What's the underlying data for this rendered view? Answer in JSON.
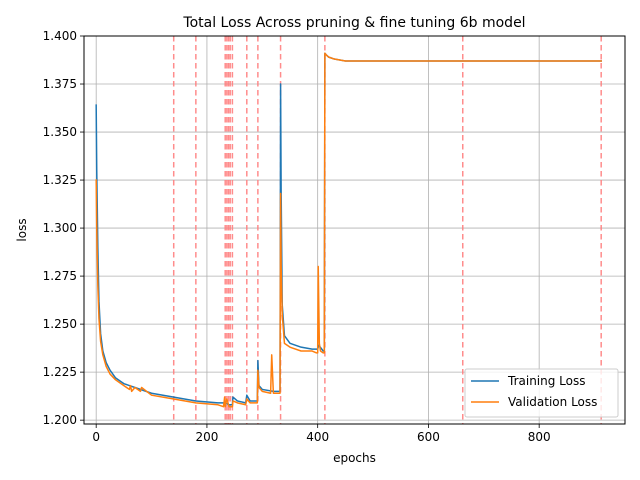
{
  "chart_data": {
    "type": "line",
    "title": "Total Loss Across pruning & fine tuning 6b model",
    "xlabel": "epochs",
    "ylabel": "loss",
    "xlim": [
      -22,
      955
    ],
    "ylim": [
      1.198,
      1.4
    ],
    "xticks": [
      0,
      200,
      400,
      600,
      800
    ],
    "yticks": [
      1.2,
      1.225,
      1.25,
      1.275,
      1.3,
      1.325,
      1.35,
      1.375,
      1.4
    ],
    "ytick_labels": [
      "1.200",
      "1.225",
      "1.250",
      "1.275",
      "1.300",
      "1.325",
      "1.350",
      "1.375",
      "1.400"
    ],
    "grid": true,
    "legend_position": "lower-right",
    "vlines": {
      "color": "#ff7f7f",
      "style": "dashed",
      "x": [
        140,
        180,
        233,
        236,
        239,
        242,
        246,
        272,
        292,
        333,
        413,
        662,
        912
      ]
    },
    "series": [
      {
        "name": "Training Loss",
        "color": "#1f77b4",
        "x": [
          0,
          1,
          3,
          5,
          8,
          12,
          18,
          25,
          35,
          50,
          70,
          100,
          140,
          180,
          220,
          232,
          233,
          240,
          246,
          247,
          255,
          270,
          272,
          278,
          291,
          292,
          294,
          300,
          320,
          332,
          333,
          334,
          336,
          340,
          350,
          370,
          390,
          400,
          402,
          410,
          412,
          413,
          416,
          420,
          430,
          450,
          500,
          600,
          700,
          800,
          900,
          912
        ],
        "y": [
          1.364,
          1.33,
          1.29,
          1.262,
          1.245,
          1.236,
          1.23,
          1.226,
          1.222,
          1.219,
          1.217,
          1.214,
          1.212,
          1.21,
          1.209,
          1.209,
          1.209,
          1.208,
          1.208,
          1.212,
          1.21,
          1.209,
          1.213,
          1.21,
          1.21,
          1.231,
          1.218,
          1.216,
          1.215,
          1.215,
          1.375,
          1.32,
          1.26,
          1.244,
          1.24,
          1.238,
          1.237,
          1.237,
          1.239,
          1.236,
          1.236,
          1.391,
          1.39,
          1.389,
          1.388,
          1.387,
          1.387,
          1.387,
          1.387,
          1.387,
          1.387,
          1.387
        ]
      },
      {
        "name": "Validation Loss",
        "color": "#ff7f0e",
        "x": [
          0,
          1,
          3,
          5,
          8,
          12,
          18,
          25,
          35,
          50,
          60,
          62,
          64,
          70,
          80,
          82,
          100,
          140,
          180,
          220,
          230,
          232,
          233,
          236,
          240,
          246,
          247,
          255,
          270,
          272,
          278,
          291,
          292,
          294,
          300,
          315,
          317,
          320,
          332,
          333,
          334,
          336,
          340,
          350,
          370,
          390,
          398,
          400,
          401,
          403,
          405,
          410,
          412,
          413,
          416,
          420,
          430,
          450,
          500,
          600,
          700,
          800,
          900,
          912
        ],
        "y": [
          1.325,
          1.3,
          1.27,
          1.253,
          1.241,
          1.234,
          1.228,
          1.224,
          1.221,
          1.218,
          1.216,
          1.218,
          1.215,
          1.217,
          1.215,
          1.217,
          1.213,
          1.211,
          1.209,
          1.208,
          1.207,
          1.212,
          1.207,
          1.211,
          1.207,
          1.207,
          1.21,
          1.209,
          1.208,
          1.211,
          1.209,
          1.209,
          1.226,
          1.217,
          1.215,
          1.214,
          1.234,
          1.214,
          1.214,
          1.318,
          1.28,
          1.255,
          1.24,
          1.238,
          1.236,
          1.236,
          1.235,
          1.235,
          1.28,
          1.24,
          1.236,
          1.235,
          1.235,
          1.391,
          1.39,
          1.389,
          1.388,
          1.387,
          1.387,
          1.387,
          1.387,
          1.387,
          1.387,
          1.387
        ]
      }
    ]
  }
}
